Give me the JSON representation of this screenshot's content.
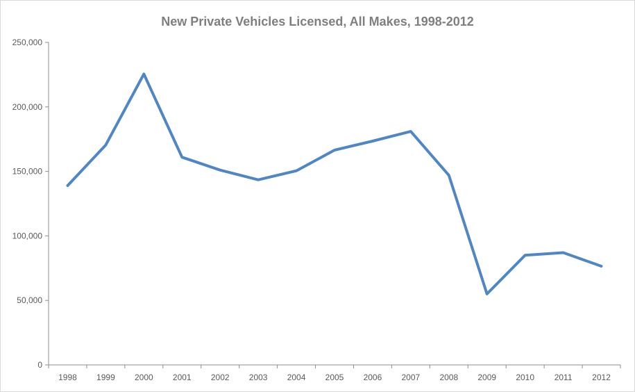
{
  "chart_data": {
    "type": "line",
    "title": "New Private Vehicles Licensed, All Makes, 1998-2012",
    "xlabel": "",
    "ylabel": "",
    "categories": [
      "1998",
      "1999",
      "2000",
      "2001",
      "2002",
      "2003",
      "2004",
      "2005",
      "2006",
      "2007",
      "2008",
      "2009",
      "2010",
      "2011",
      "2012"
    ],
    "series": [
      {
        "values": [
          139000,
          170500,
          225500,
          161000,
          151000,
          143500,
          150500,
          166500,
          173500,
          181000,
          147000,
          55000,
          85000,
          87000,
          76500
        ],
        "color": "#4f86c6"
      }
    ],
    "ylim": [
      0,
      250000
    ],
    "yticks": [
      "0",
      "50,000",
      "100,000",
      "150,000",
      "200,000",
      "250,000"
    ],
    "ytick_values": [
      0,
      50000,
      100000,
      150000,
      200000,
      250000
    ],
    "grid": false,
    "legend": "none"
  }
}
